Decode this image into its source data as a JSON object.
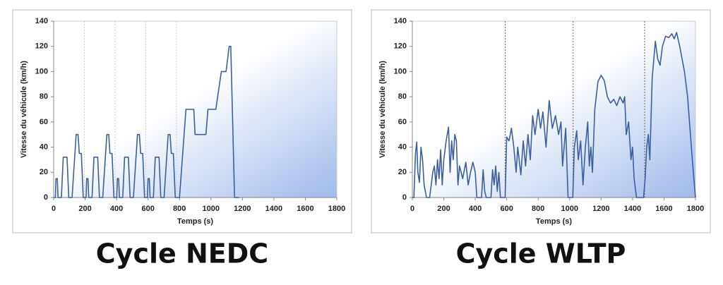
{
  "chart_data": [
    {
      "type": "line",
      "title": "Cycle NEDC",
      "xlabel": "Temps (s)",
      "ylabel": "Vitesse du véhicule (km/h)",
      "xlim": [
        0,
        1800
      ],
      "ylim": [
        0,
        140
      ],
      "xticks": [
        0,
        200,
        400,
        600,
        800,
        1000,
        1200,
        1400,
        1600,
        1800
      ],
      "yticks": [
        0,
        20,
        40,
        60,
        80,
        100,
        120,
        140
      ],
      "phase_boundaries": [
        195,
        390,
        585,
        780
      ],
      "series": [
        {
          "color": "#3d5f9e",
          "x": [
            0,
            11,
            15,
            23,
            28,
            49,
            61,
            85,
            96,
            117,
            143,
            155,
            163,
            176,
            188,
            195,
            206,
            210,
            218,
            223,
            244,
            256,
            280,
            291,
            312,
            338,
            350,
            358,
            371,
            383,
            390,
            401,
            405,
            413,
            418,
            439,
            451,
            475,
            486,
            507,
            533,
            545,
            553,
            566,
            578,
            585,
            596,
            600,
            608,
            613,
            634,
            646,
            670,
            681,
            702,
            728,
            740,
            748,
            761,
            773,
            780,
            800,
            841,
            891,
            899,
            968,
            981,
            1031,
            1066,
            1096,
            1116,
            1126,
            1150,
            1180
          ],
          "values": [
            0,
            0,
            15,
            15,
            0,
            0,
            32,
            32,
            0,
            0,
            50,
            50,
            35,
            35,
            0,
            0,
            0,
            15,
            15,
            0,
            0,
            32,
            32,
            0,
            0,
            50,
            50,
            35,
            35,
            0,
            0,
            0,
            15,
            15,
            0,
            0,
            32,
            32,
            0,
            0,
            50,
            50,
            35,
            35,
            0,
            0,
            0,
            15,
            15,
            0,
            0,
            32,
            32,
            0,
            0,
            50,
            50,
            35,
            35,
            0,
            0,
            0,
            70,
            70,
            50,
            50,
            70,
            70,
            100,
            100,
            120,
            120,
            0,
            0
          ]
        }
      ]
    },
    {
      "type": "line",
      "title": "Cycle WLTP",
      "xlabel": "Temps (s)",
      "ylabel": "Vitesse du véhicule (km/h)",
      "xlim": [
        0,
        1800
      ],
      "ylim": [
        0,
        140
      ],
      "xticks": [
        0,
        200,
        400,
        600,
        800,
        1000,
        1200,
        1400,
        1600,
        1800
      ],
      "yticks": [
        0,
        20,
        40,
        60,
        80,
        100,
        120,
        140
      ],
      "phase_boundaries": [
        590,
        1022,
        1477
      ],
      "series": [
        {
          "color": "#3d5f9e",
          "x": [
            0,
            10,
            20,
            28,
            35,
            45,
            55,
            65,
            75,
            90,
            110,
            130,
            140,
            150,
            160,
            170,
            180,
            190,
            200,
            215,
            230,
            240,
            250,
            260,
            270,
            280,
            290,
            300,
            320,
            340,
            355,
            370,
            385,
            400,
            410,
            440,
            450,
            460,
            470,
            500,
            510,
            520,
            530,
            540,
            550,
            560,
            590,
            600,
            615,
            630,
            645,
            660,
            670,
            690,
            705,
            720,
            735,
            750,
            765,
            780,
            800,
            815,
            830,
            850,
            870,
            890,
            910,
            930,
            945,
            955,
            975,
            990,
            1020,
            1030,
            1045,
            1055,
            1070,
            1085,
            1100,
            1115,
            1125,
            1135,
            1145,
            1160,
            1180,
            1200,
            1220,
            1240,
            1260,
            1280,
            1300,
            1320,
            1340,
            1350,
            1360,
            1375,
            1390,
            1400,
            1410,
            1425,
            1470,
            1480,
            1490,
            1500,
            1510,
            1525,
            1545,
            1560,
            1575,
            1590,
            1610,
            1630,
            1650,
            1665,
            1680,
            1700,
            1730,
            1750,
            1780,
            1800
          ],
          "values": [
            0,
            0,
            35,
            44,
            20,
            12,
            40,
            30,
            10,
            0,
            0,
            20,
            25,
            10,
            30,
            15,
            38,
            10,
            30,
            45,
            56,
            20,
            45,
            30,
            50,
            45,
            10,
            25,
            15,
            28,
            10,
            20,
            28,
            20,
            0,
            0,
            22,
            5,
            0,
            0,
            22,
            10,
            25,
            5,
            20,
            0,
            0,
            48,
            45,
            55,
            40,
            20,
            40,
            18,
            45,
            25,
            50,
            30,
            65,
            50,
            70,
            55,
            68,
            40,
            77,
            55,
            65,
            50,
            60,
            25,
            55,
            0,
            0,
            40,
            53,
            30,
            45,
            10,
            40,
            60,
            25,
            40,
            20,
            70,
            92,
            97,
            93,
            80,
            75,
            78,
            73,
            80,
            75,
            80,
            50,
            60,
            30,
            40,
            15,
            0,
            0,
            15,
            40,
            50,
            30,
            95,
            124,
            110,
            105,
            120,
            128,
            127,
            130,
            126,
            131,
            120,
            100,
            80,
            30,
            0
          ]
        }
      ]
    }
  ]
}
